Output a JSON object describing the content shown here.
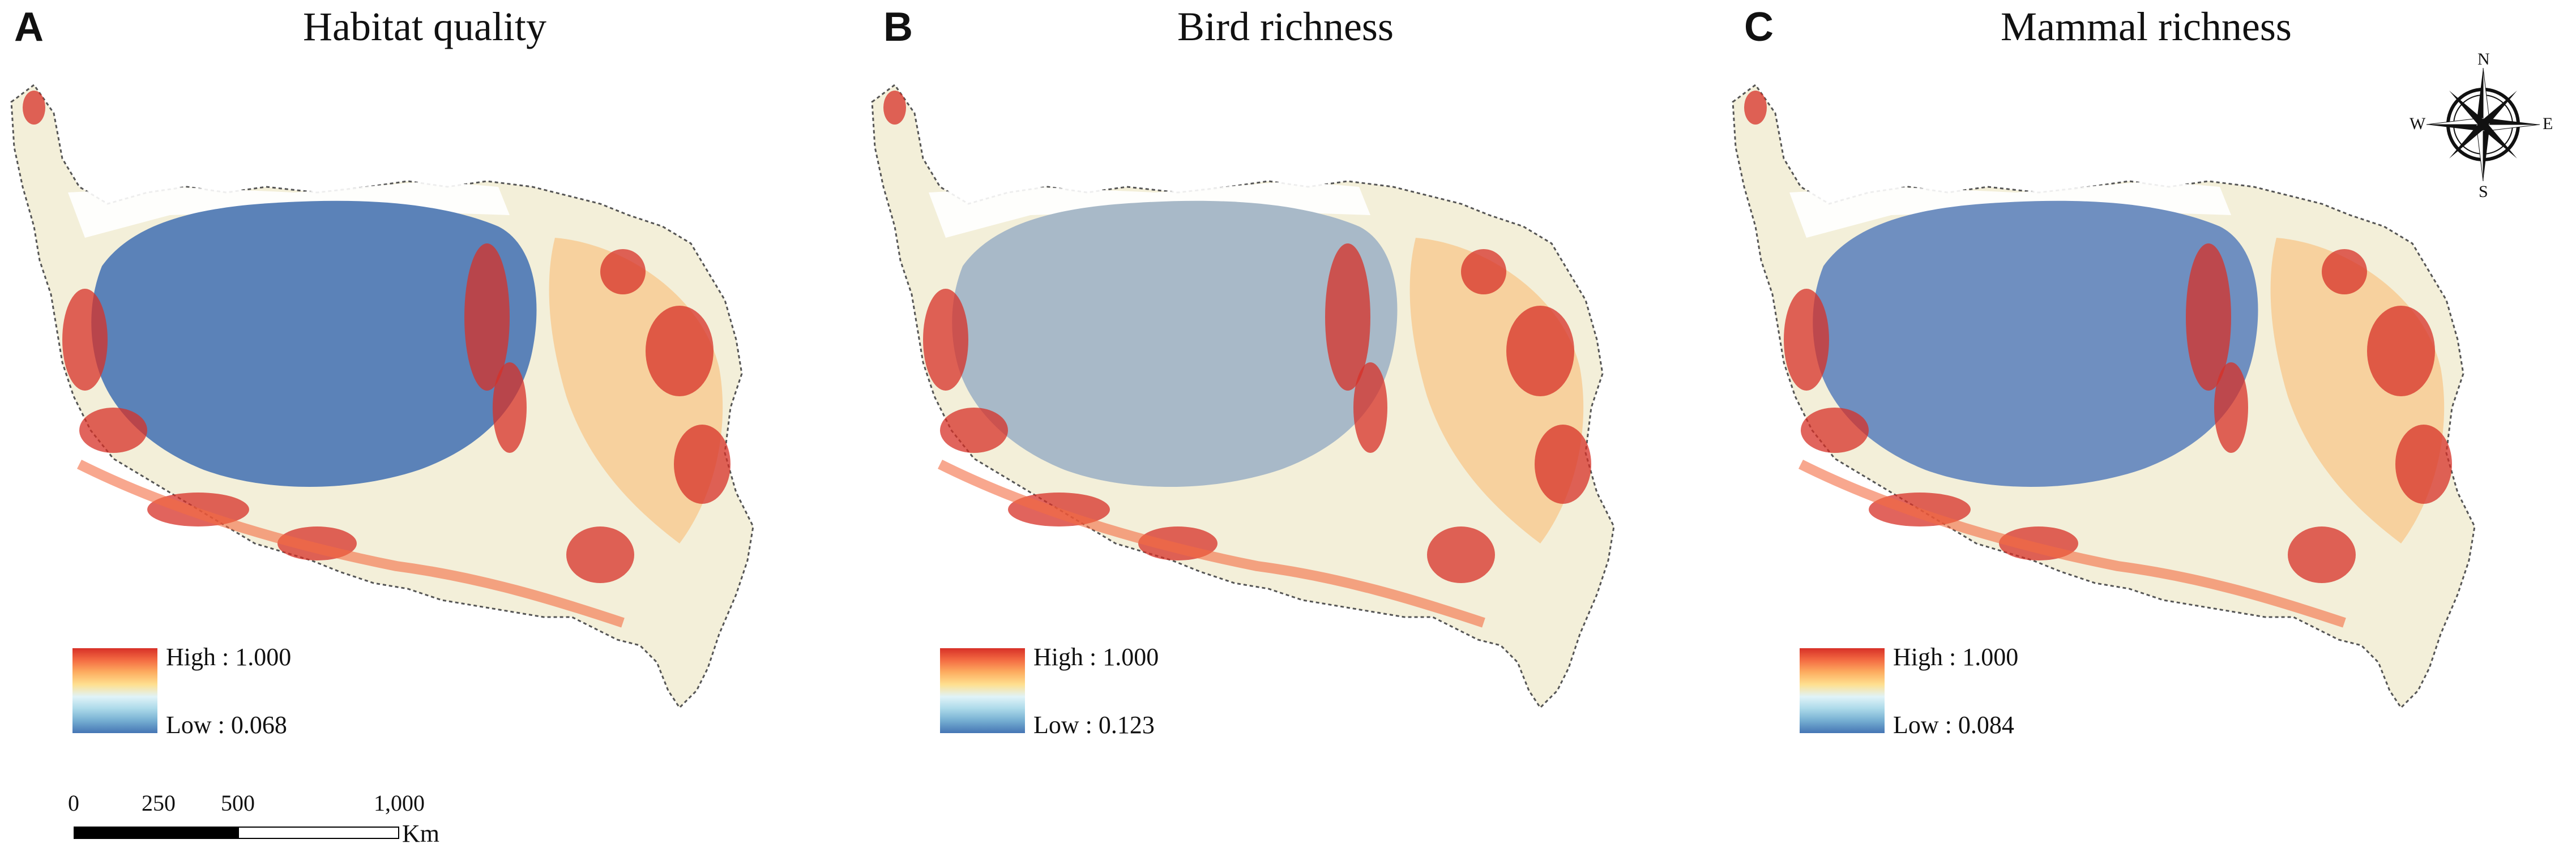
{
  "panels": [
    {
      "letter": "A",
      "title": "Habitat quality",
      "legend": {
        "high": "High : 1.000",
        "low": "Low : 0.068"
      },
      "core_color": "#5b82b8"
    },
    {
      "letter": "B",
      "title": "Bird richness",
      "legend": {
        "high": "High : 1.000",
        "low": "Low : 0.123"
      },
      "core_color": "#a8b9c8"
    },
    {
      "letter": "C",
      "title": "Mammal richness",
      "legend": {
        "high": "High : 1.000",
        "low": "Low : 0.084"
      },
      "core_color": "#6f8fc0"
    }
  ],
  "legend_colors": [
    "#d73027",
    "#f46d43",
    "#fdae61",
    "#fee090",
    "#e0f3f8",
    "#abd9e9",
    "#74add1",
    "#4575b4"
  ],
  "scalebar": {
    "ticks": [
      "0",
      "250",
      "500",
      "1,000"
    ],
    "unit": "Km"
  },
  "compass": {
    "n": "N",
    "s": "S",
    "e": "E",
    "w": "W"
  }
}
